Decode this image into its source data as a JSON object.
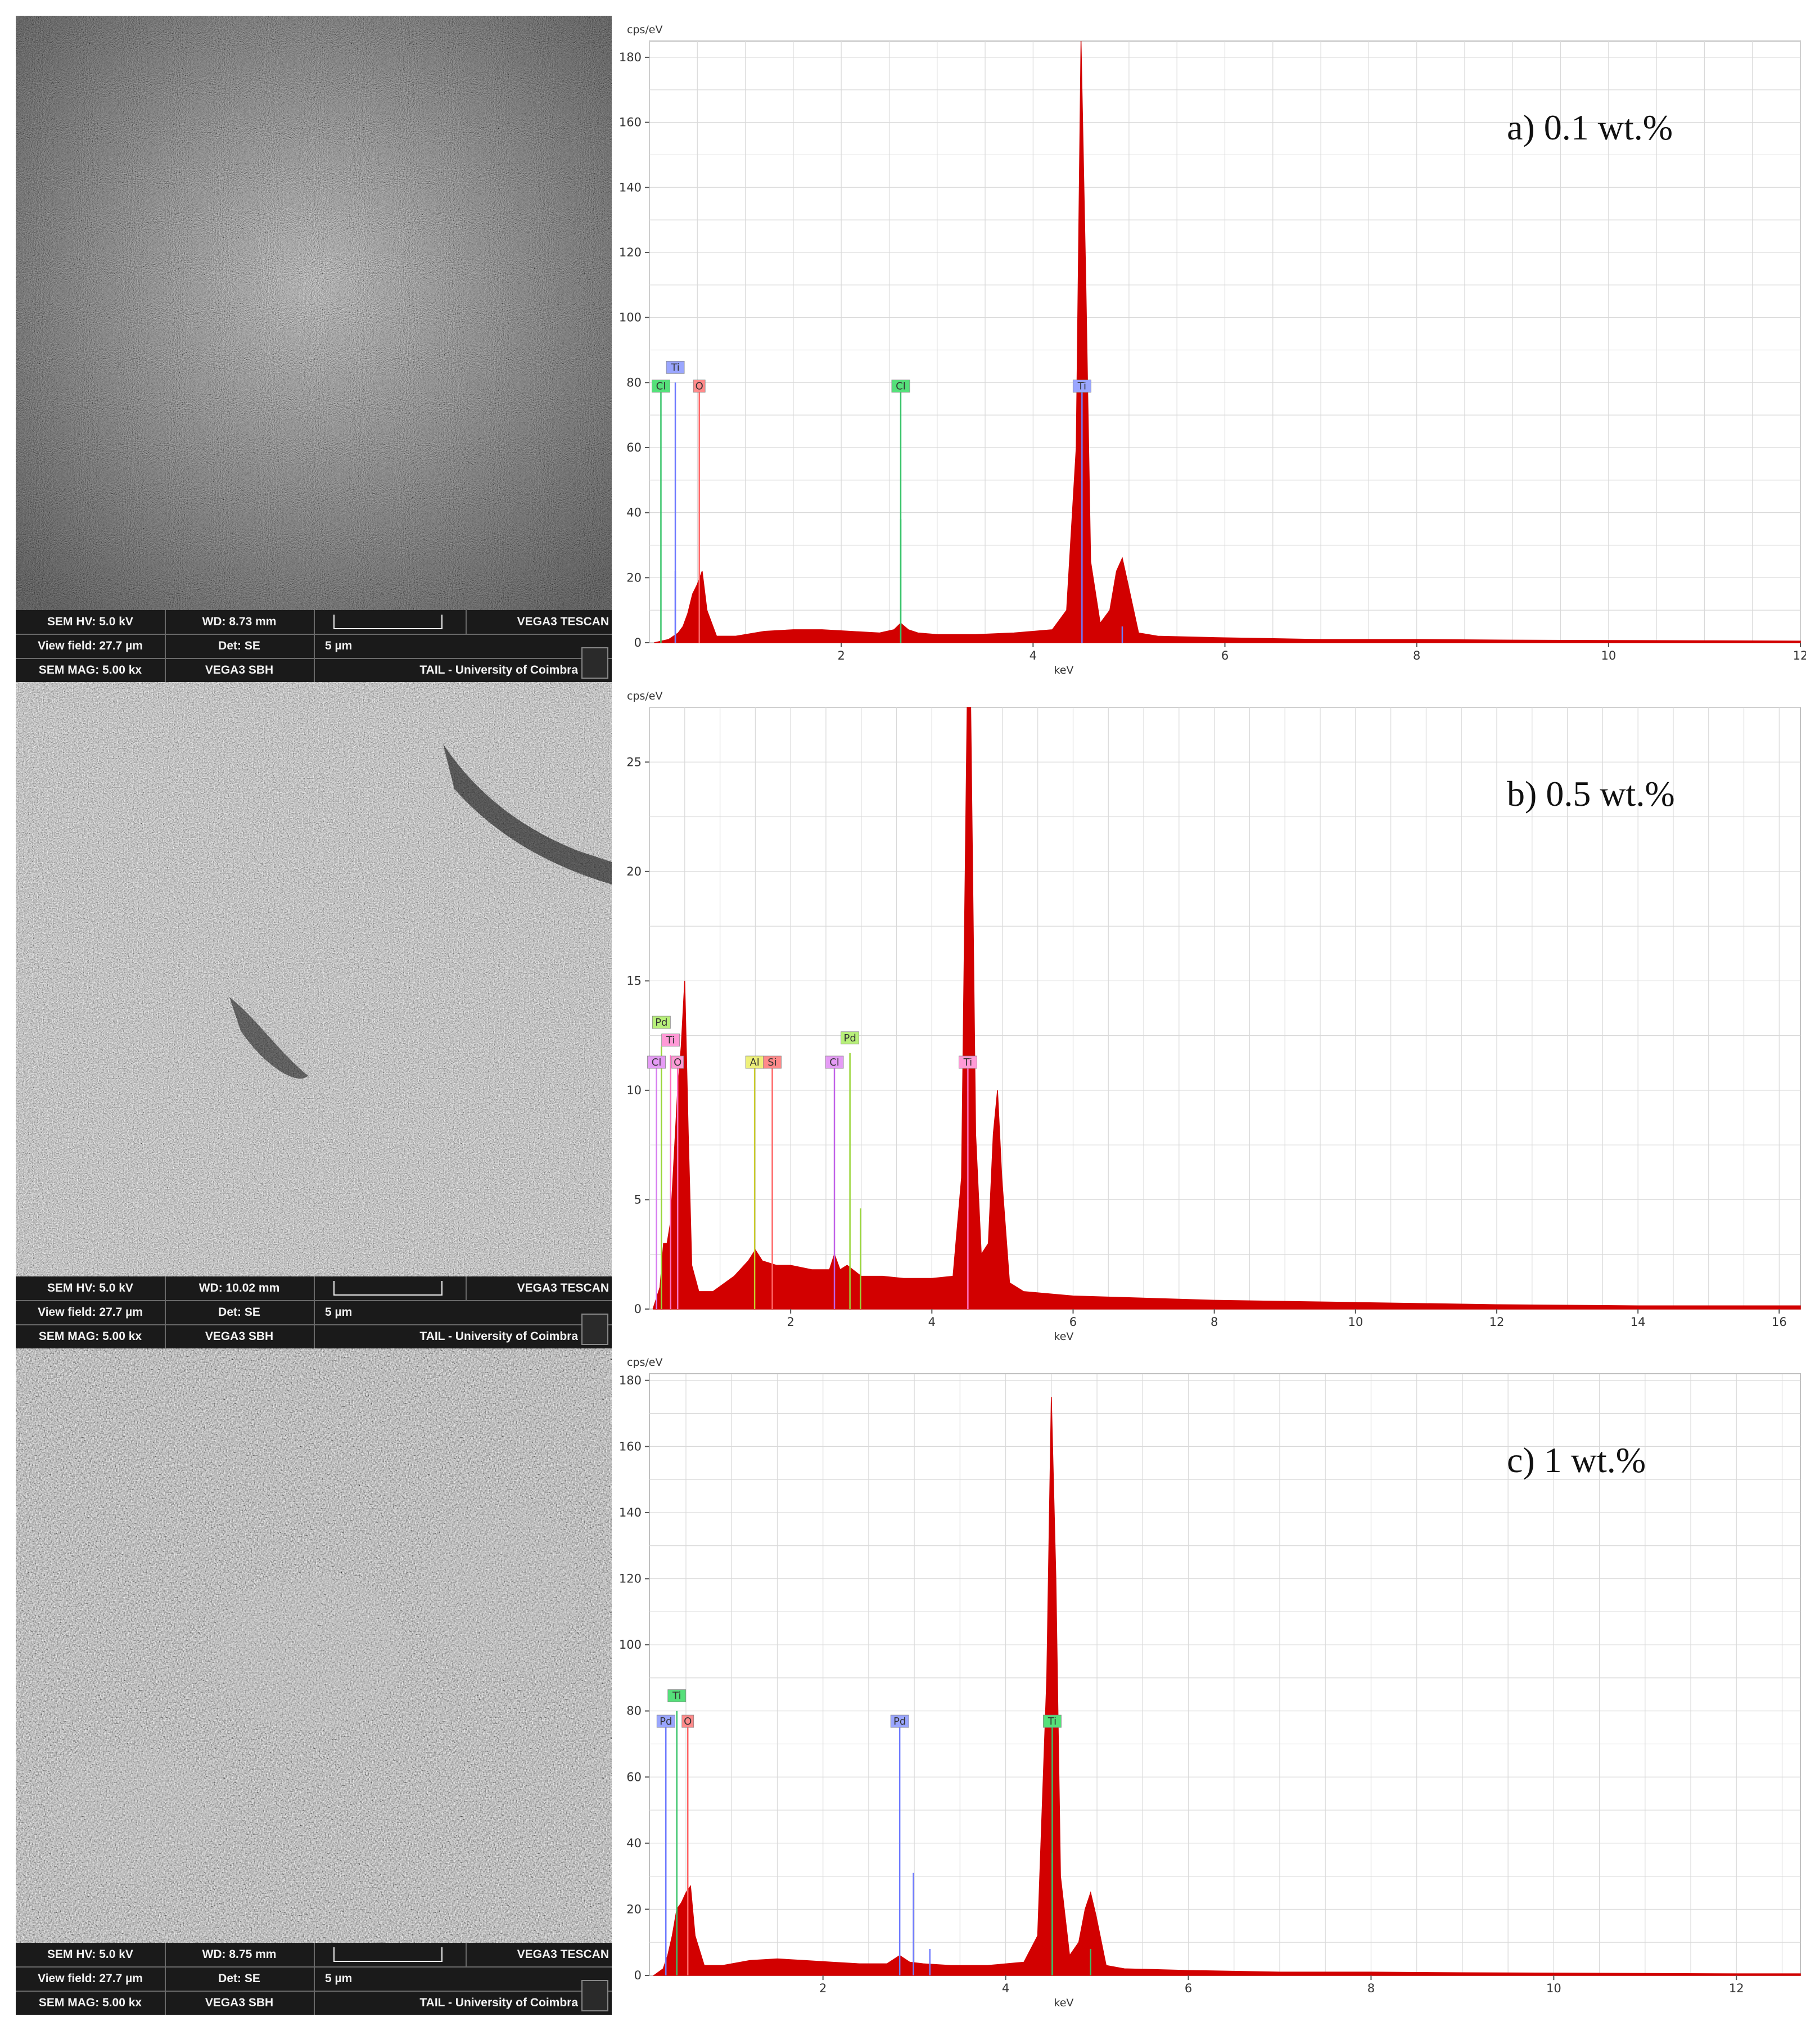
{
  "colors": {
    "spectrum_fill": "#d20000",
    "grid": "#d9d9d9",
    "sem_bar": "#1a1a1a",
    "label_blue": "#9aa6ff",
    "label_green": "#55e07a",
    "label_red": "#ff8a8a",
    "label_yellow": "#eef07a",
    "label_violet": "#e59cf5",
    "label_lime": "#b8f07a"
  },
  "panels": [
    {
      "id": "a",
      "sem": {
        "row1": [
          "SEM HV: 5.0 kV",
          "WD: 8.73 mm",
          "VEGA3 TESCAN"
        ],
        "row2": [
          "View field: 27.7 µm",
          "Det: SE",
          "5 µm"
        ],
        "row3": [
          "SEM MAG: 5.00 kx",
          "VEGA3 SBH",
          "TAIL - University of Coimbra"
        ]
      },
      "annotation": "a) 0.1 wt.%"
    },
    {
      "id": "b",
      "sem": {
        "row1": [
          "SEM HV: 5.0 kV",
          "WD: 10.02 mm",
          "VEGA3 TESCAN"
        ],
        "row2": [
          "View field: 27.7 µm",
          "Det: SE",
          "5 µm"
        ],
        "row3": [
          "SEM MAG: 5.00 kx",
          "VEGA3 SBH",
          "TAIL - University of Coimbra"
        ]
      },
      "annotation": "b) 0.5 wt.%"
    },
    {
      "id": "c",
      "sem": {
        "row1": [
          "SEM HV: 5.0 kV",
          "WD: 8.75 mm",
          "VEGA3 TESCAN"
        ],
        "row2": [
          "View field: 27.7 µm",
          "Det: SE",
          "5 µm"
        ],
        "row3": [
          "SEM MAG: 5.00 kx",
          "VEGA3 SBH",
          "TAIL - University of Coimbra"
        ]
      },
      "annotation": "c) 1 wt.%"
    }
  ],
  "chart_data": [
    {
      "type": "area",
      "ylabel": "cps/eV",
      "xlabel": "keV",
      "xlim": [
        0.0,
        12.0
      ],
      "ylim": [
        0,
        185
      ],
      "xticks": [
        2,
        4,
        6,
        8,
        10,
        12
      ],
      "yticks": [
        0,
        20,
        40,
        60,
        80,
        100,
        120,
        140,
        160,
        180
      ],
      "grid": true,
      "spectrum": {
        "x": [
          0.05,
          0.2,
          0.3,
          0.35,
          0.4,
          0.45,
          0.5,
          0.55,
          0.6,
          0.7,
          0.9,
          1.2,
          1.5,
          1.8,
          2.1,
          2.4,
          2.55,
          2.62,
          2.7,
          2.8,
          3.0,
          3.4,
          3.8,
          4.2,
          4.35,
          4.45,
          4.5,
          4.55,
          4.6,
          4.7,
          4.8,
          4.87,
          4.93,
          4.99,
          5.1,
          5.3,
          6.0,
          7.0,
          8.0,
          9.0,
          10.0,
          11.0,
          12.0
        ],
        "y": [
          0,
          1,
          3,
          5,
          9,
          15,
          18,
          22,
          10,
          2,
          2,
          3.5,
          4,
          4,
          3.5,
          3,
          4,
          6,
          4,
          3,
          2.5,
          2.5,
          3,
          4,
          10,
          60,
          185,
          110,
          25,
          6,
          10,
          22,
          26,
          18,
          3,
          2,
          1.5,
          1,
          1,
          0.8,
          0.7,
          0.6,
          0.5
        ]
      },
      "lines": [
        {
          "x": 0.12,
          "height": 77,
          "color": "#38c46a"
        },
        {
          "x": 0.27,
          "height": 22,
          "color": "#6f7bff"
        },
        {
          "x": 0.27,
          "height": 80,
          "color": "#6f7bff"
        },
        {
          "x": 0.52,
          "height": 77,
          "color": "#ff6666"
        },
        {
          "x": 2.62,
          "height": 77,
          "color": "#38c46a"
        },
        {
          "x": 2.62,
          "height": 38,
          "color": "#38c46a"
        },
        {
          "x": 4.51,
          "height": 77,
          "color": "#6f7bff"
        },
        {
          "x": 4.93,
          "height": 5,
          "color": "#6f7bff"
        }
      ],
      "labels": [
        {
          "text": "Cl",
          "x": 0.12,
          "level": 0,
          "color": "#55e07a"
        },
        {
          "text": "Ti",
          "x": 0.27,
          "level": 1,
          "color": "#9aa6ff"
        },
        {
          "text": "O",
          "x": 0.52,
          "level": 0,
          "color": "#ff8a8a"
        },
        {
          "text": "Cl",
          "x": 2.62,
          "level": 0,
          "color": "#55e07a"
        },
        {
          "text": "Ti",
          "x": 4.51,
          "level": 0,
          "color": "#9aa6ff"
        }
      ]
    },
    {
      "type": "area",
      "ylabel": "cps/eV",
      "xlabel": "keV",
      "xlim": [
        0.0,
        16.3
      ],
      "ylim": [
        0,
        27.5
      ],
      "xticks": [
        2,
        4,
        6,
        8,
        10,
        12,
        14,
        16
      ],
      "yticks": [
        0,
        5,
        10,
        15,
        20,
        25
      ],
      "grid": true,
      "spectrum": {
        "x": [
          0.05,
          0.15,
          0.2,
          0.25,
          0.3,
          0.35,
          0.4,
          0.45,
          0.5,
          0.55,
          0.6,
          0.7,
          0.9,
          1.2,
          1.4,
          1.5,
          1.6,
          1.8,
          2.0,
          2.3,
          2.55,
          2.62,
          2.7,
          2.8,
          3.0,
          3.3,
          3.6,
          4.0,
          4.3,
          4.42,
          4.5,
          4.55,
          4.62,
          4.7,
          4.8,
          4.87,
          4.93,
          4.99,
          5.1,
          5.3,
          6.0,
          8.0,
          10.0,
          12.0,
          14.0,
          16.3
        ],
        "y": [
          0,
          1,
          3,
          3,
          4,
          7,
          10,
          12,
          15,
          8,
          2,
          0.8,
          0.8,
          1.5,
          2.2,
          2.7,
          2.2,
          2.0,
          2.0,
          1.8,
          1.8,
          2.5,
          1.8,
          2.0,
          1.5,
          1.5,
          1.4,
          1.4,
          1.5,
          6,
          27.5,
          27.5,
          8,
          2.5,
          3,
          8,
          10,
          6,
          1.2,
          0.8,
          0.6,
          0.4,
          0.3,
          0.2,
          0.15,
          0.15
        ]
      },
      "lines": [
        {
          "x": 0.1,
          "height": 11,
          "color": "#d67cf0"
        },
        {
          "x": 0.17,
          "height": 12,
          "color": "#9ad63a"
        },
        {
          "x": 0.3,
          "height": 11.6,
          "color": "#ff6fc0"
        },
        {
          "x": 0.4,
          "height": 11,
          "color": "#ff6fc0"
        },
        {
          "x": 1.49,
          "height": 11,
          "color": "#c9cc2a"
        },
        {
          "x": 1.74,
          "height": 11,
          "color": "#ff6666"
        },
        {
          "x": 2.62,
          "height": 11,
          "color": "#c060e8"
        },
        {
          "x": 2.84,
          "height": 11.7,
          "color": "#9ad63a"
        },
        {
          "x": 2.99,
          "height": 4.6,
          "color": "#9ad63a"
        },
        {
          "x": 4.51,
          "height": 11,
          "color": "#ff6fc0"
        }
      ],
      "labels": [
        {
          "text": "Cl",
          "x": 0.1,
          "level": 0,
          "color": "#e59cf5"
        },
        {
          "text": "Pd",
          "x": 0.17,
          "level": 2,
          "color": "#b8f07a"
        },
        {
          "text": "Ti",
          "x": 0.3,
          "level": 1,
          "color": "#ff9ad6"
        },
        {
          "text": "O",
          "x": 0.4,
          "level": 0,
          "color": "#ff9ad6"
        },
        {
          "text": "Al",
          "x": 1.49,
          "level": 0,
          "color": "#eef07a"
        },
        {
          "text": "Si",
          "x": 1.74,
          "level": 0,
          "color": "#ff8a8a"
        },
        {
          "text": "Cl",
          "x": 2.62,
          "level": 0,
          "color": "#e59cf5"
        },
        {
          "text": "Pd",
          "x": 2.84,
          "level": 1,
          "color": "#b8f07a"
        },
        {
          "text": "Ti",
          "x": 4.51,
          "level": 0,
          "color": "#ff9ad6"
        }
      ]
    },
    {
      "type": "area",
      "ylabel": "cps/eV",
      "xlabel": "keV",
      "xlim": [
        0.1,
        12.7
      ],
      "ylim": [
        0,
        182
      ],
      "xticks": [
        2,
        4,
        6,
        8,
        10,
        12
      ],
      "yticks": [
        0,
        20,
        40,
        60,
        80,
        100,
        120,
        140,
        160,
        180
      ],
      "grid": true,
      "spectrum": {
        "x": [
          0.15,
          0.25,
          0.3,
          0.35,
          0.4,
          0.45,
          0.5,
          0.55,
          0.6,
          0.7,
          0.9,
          1.2,
          1.5,
          1.8,
          2.1,
          2.4,
          2.7,
          2.84,
          2.95,
          3.1,
          3.4,
          3.8,
          4.2,
          4.35,
          4.45,
          4.5,
          4.55,
          4.6,
          4.7,
          4.8,
          4.87,
          4.93,
          4.99,
          5.1,
          5.3,
          6.0,
          7.0,
          8.0,
          9.0,
          10.0,
          11.0,
          12.0,
          12.7
        ],
        "y": [
          0,
          2,
          6,
          12,
          20,
          22,
          25,
          27,
          12,
          3,
          3,
          4.5,
          5,
          4.5,
          4,
          3.5,
          3.5,
          6,
          4,
          3.5,
          3,
          3,
          4,
          12,
          90,
          175,
          120,
          30,
          6,
          10,
          20,
          25,
          18,
          3,
          2,
          1.5,
          1,
          1,
          0.8,
          0.7,
          0.6,
          0.5,
          0.5
        ]
      },
      "lines": [
        {
          "x": 0.28,
          "height": 75,
          "color": "#6f7bff"
        },
        {
          "x": 0.4,
          "height": 80,
          "color": "#38c46a"
        },
        {
          "x": 0.4,
          "height": 20,
          "color": "#38c46a"
        },
        {
          "x": 0.52,
          "height": 75,
          "color": "#ff6666"
        },
        {
          "x": 2.84,
          "height": 75,
          "color": "#6f7bff"
        },
        {
          "x": 2.99,
          "height": 31,
          "color": "#6f7bff"
        },
        {
          "x": 3.17,
          "height": 8,
          "color": "#6f7bff"
        },
        {
          "x": 4.51,
          "height": 75,
          "color": "#38c46a"
        },
        {
          "x": 4.51,
          "height": 37,
          "color": "#38c46a"
        },
        {
          "x": 4.93,
          "height": 8,
          "color": "#38c46a"
        }
      ],
      "labels": [
        {
          "text": "Pd",
          "x": 0.28,
          "level": 0,
          "color": "#9aa6ff"
        },
        {
          "text": "Ti",
          "x": 0.4,
          "level": 1,
          "color": "#55e07a"
        },
        {
          "text": "O",
          "x": 0.52,
          "level": 0,
          "color": "#ff8a8a"
        },
        {
          "text": "Pd",
          "x": 2.84,
          "level": 0,
          "color": "#9aa6ff"
        },
        {
          "text": "Ti",
          "x": 4.51,
          "level": 0,
          "color": "#55e07a"
        }
      ]
    }
  ]
}
